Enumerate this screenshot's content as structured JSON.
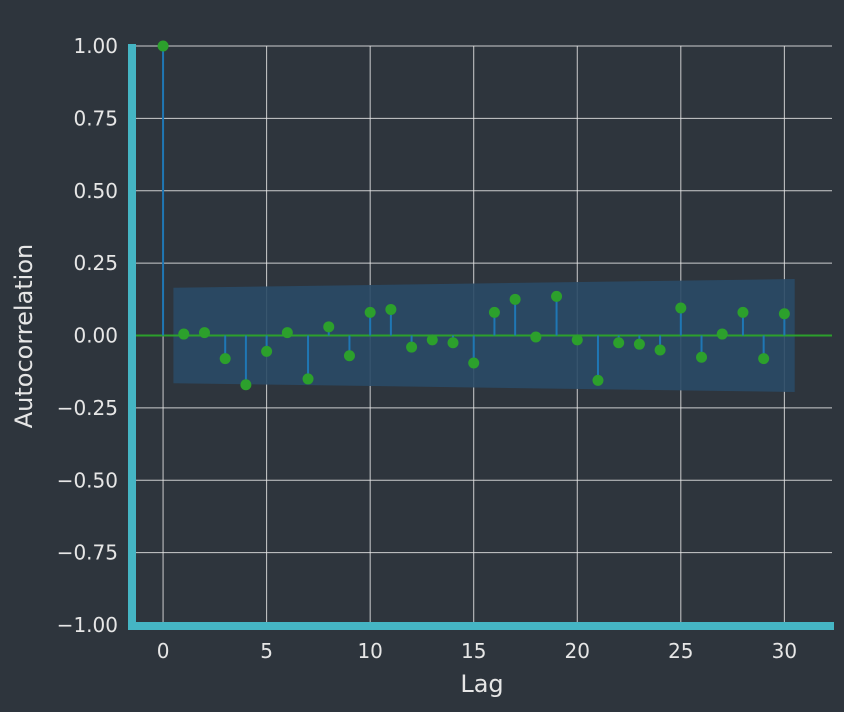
{
  "chart_data": {
    "type": "scatter",
    "subtype": "acf-stem",
    "xlabel": "Lag",
    "ylabel": "Autocorrelation",
    "xlim": [
      -1.5,
      32.3
    ],
    "ylim": [
      -1.0,
      1.0
    ],
    "x_ticks": [
      0,
      5,
      10,
      15,
      20,
      25,
      30
    ],
    "x_tick_labels": [
      "0",
      "5",
      "10",
      "15",
      "20",
      "25",
      "30"
    ],
    "y_ticks": [
      1.0,
      0.75,
      0.5,
      0.25,
      0.0,
      -0.25,
      -0.5,
      -0.75,
      -1.0
    ],
    "y_tick_labels": [
      "1.00",
      "0.75",
      "0.50",
      "0.25",
      "0.00",
      "−0.25",
      "−0.50",
      "−0.75",
      "−1.00"
    ],
    "grid": true,
    "lags": [
      0,
      1,
      2,
      3,
      4,
      5,
      6,
      7,
      8,
      9,
      10,
      11,
      12,
      13,
      14,
      15,
      16,
      17,
      18,
      19,
      20,
      21,
      22,
      23,
      24,
      25,
      26,
      27,
      28,
      29,
      30
    ],
    "values": [
      1.0,
      0.005,
      0.01,
      -0.08,
      -0.17,
      -0.055,
      0.01,
      -0.15,
      0.03,
      -0.07,
      0.08,
      0.09,
      -0.04,
      -0.015,
      -0.025,
      -0.095,
      0.08,
      0.125,
      -0.005,
      0.135,
      -0.015,
      -0.155,
      -0.025,
      -0.03,
      -0.05,
      0.095,
      -0.075,
      0.005,
      0.08,
      -0.08,
      0.075
    ],
    "confidence_band": {
      "x": [
        0.5,
        30.5
      ],
      "upper": [
        0.165,
        0.195
      ],
      "lower": [
        -0.165,
        -0.195
      ]
    },
    "colors": {
      "background": "#2e353d",
      "stem": "#1f77b4",
      "marker": "#2ca02c",
      "zero_line": "#2ca02c",
      "band": "#2a4a66",
      "axis_spine": "#45b5c4",
      "grid": "#e8e8e8",
      "text": "#e6e6e6"
    }
  }
}
